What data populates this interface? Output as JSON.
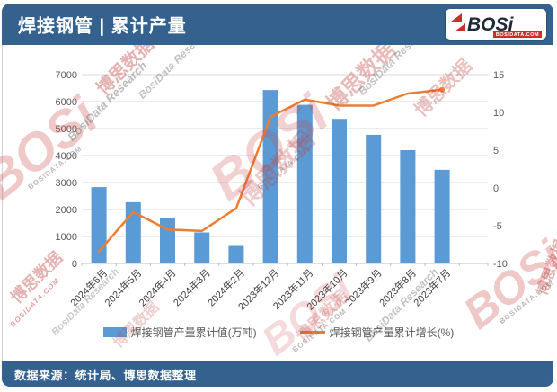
{
  "header": {
    "title": "焊接钢管 | 累计产量",
    "logo_text": "BOSi",
    "logo_sub": "BOSIDATA.COM"
  },
  "footer": {
    "source": "数据来源：统计局、博思数据整理"
  },
  "watermarks": {
    "cn": "博思数据",
    "en": "BosiData Research",
    "logo": "BOSi",
    "domain": "BOSIDATA.COM"
  },
  "chart_data": {
    "type": "bar+line combo",
    "title": "焊接钢管 | 累计产量",
    "categories": [
      "2024年6月",
      "2024年5月",
      "2024年4月",
      "2024年3月",
      "2024年2月",
      "2023年12月",
      "2023年11月",
      "2023年10月",
      "2023年9月",
      "2023年8月",
      "2023年7月"
    ],
    "series": [
      {
        "name": "焊接钢管产量累计值(万吨)",
        "type": "bar",
        "axis": "left",
        "color": "#5B9BD5",
        "values": [
          2830,
          2270,
          1670,
          1150,
          650,
          6430,
          5880,
          5360,
          4770,
          4200,
          3470
        ]
      },
      {
        "name": "焊接钢管产量累计增长(%)",
        "type": "line",
        "axis": "right",
        "color": "#ED7D31",
        "values": [
          -8.4,
          -3.2,
          -5.5,
          -5.7,
          -2.7,
          9.4,
          11.7,
          10.9,
          10.9,
          12.5,
          13.0
        ]
      }
    ],
    "left_axis": {
      "min": 0,
      "max": 7000,
      "step": 1000
    },
    "right_axis": {
      "min": -10,
      "max": 15,
      "step": 5
    },
    "grid": true,
    "legend_position": "bottom",
    "x_label_rotation": -45
  }
}
